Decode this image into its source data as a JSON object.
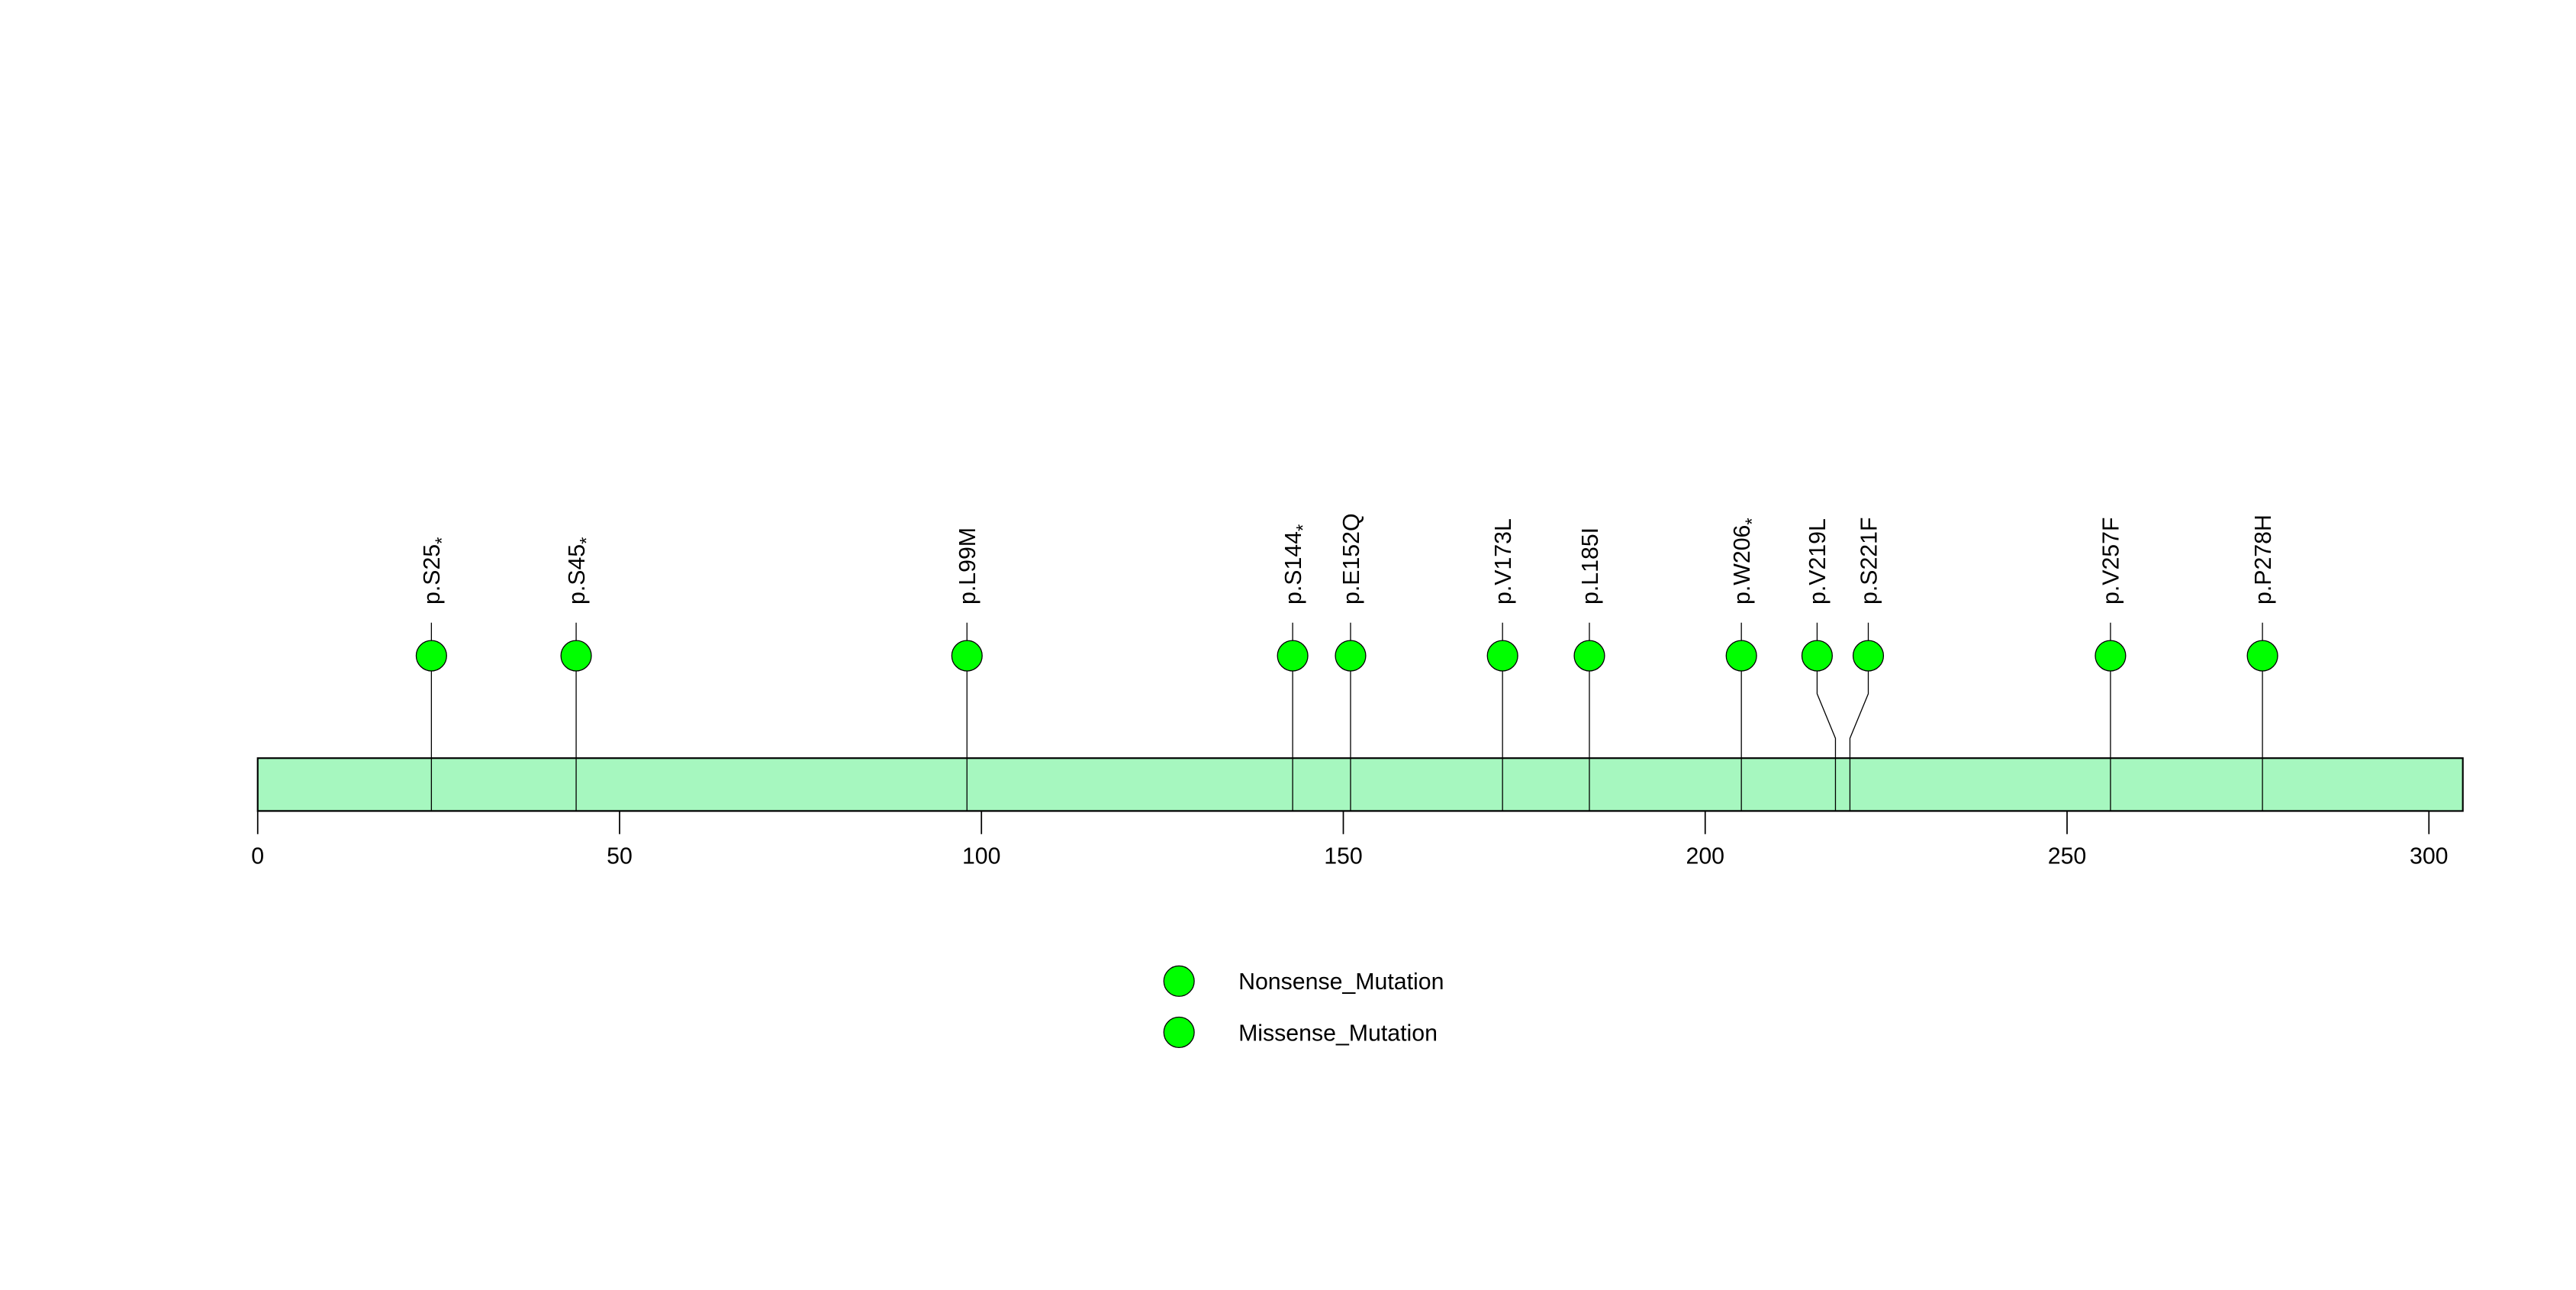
{
  "chart_data": {
    "type": "lollipop",
    "protein_length": 304,
    "xlim": [
      0,
      304
    ],
    "x_ticks": [
      "0",
      "50",
      "100",
      "150",
      "200",
      "250",
      "300"
    ],
    "x_tick_values": [
      0,
      50,
      100,
      150,
      200,
      250,
      300
    ],
    "mutations": [
      {
        "label": "p.S25",
        "suffix": "*",
        "position": 25,
        "type": "Nonsense_Mutation"
      },
      {
        "label": "p.S45",
        "suffix": "*",
        "position": 45,
        "type": "Nonsense_Mutation"
      },
      {
        "label": "p.L99M",
        "suffix": "",
        "position": 99,
        "type": "Missense_Mutation"
      },
      {
        "label": "p.S144",
        "suffix": "*",
        "position": 144,
        "type": "Nonsense_Mutation"
      },
      {
        "label": "p.E152Q",
        "suffix": "",
        "position": 152,
        "type": "Missense_Mutation"
      },
      {
        "label": "p.V173L",
        "suffix": "",
        "position": 173,
        "type": "Missense_Mutation"
      },
      {
        "label": "p.L185I",
        "suffix": "",
        "position": 185,
        "type": "Missense_Mutation"
      },
      {
        "label": "p.W206",
        "suffix": "*",
        "position": 206,
        "type": "Nonsense_Mutation"
      },
      {
        "label": "p.V219L",
        "suffix": "",
        "position": 219,
        "type": "Missense_Mutation"
      },
      {
        "label": "p.S221F",
        "suffix": "",
        "position": 221,
        "type": "Missense_Mutation"
      },
      {
        "label": "p.V257F",
        "suffix": "",
        "position": 257,
        "type": "Missense_Mutation"
      },
      {
        "label": "p.P278H",
        "suffix": "",
        "position": 278,
        "type": "Missense_Mutation"
      }
    ],
    "legend": [
      {
        "label": "Nonsense_Mutation",
        "color": "#00ff00"
      },
      {
        "label": "Missense_Mutation",
        "color": "#00ff00"
      }
    ],
    "legend_placement": "bottom-center",
    "colors": {
      "protein_bar": "#a6f7bf",
      "point": "#00ff00"
    }
  }
}
